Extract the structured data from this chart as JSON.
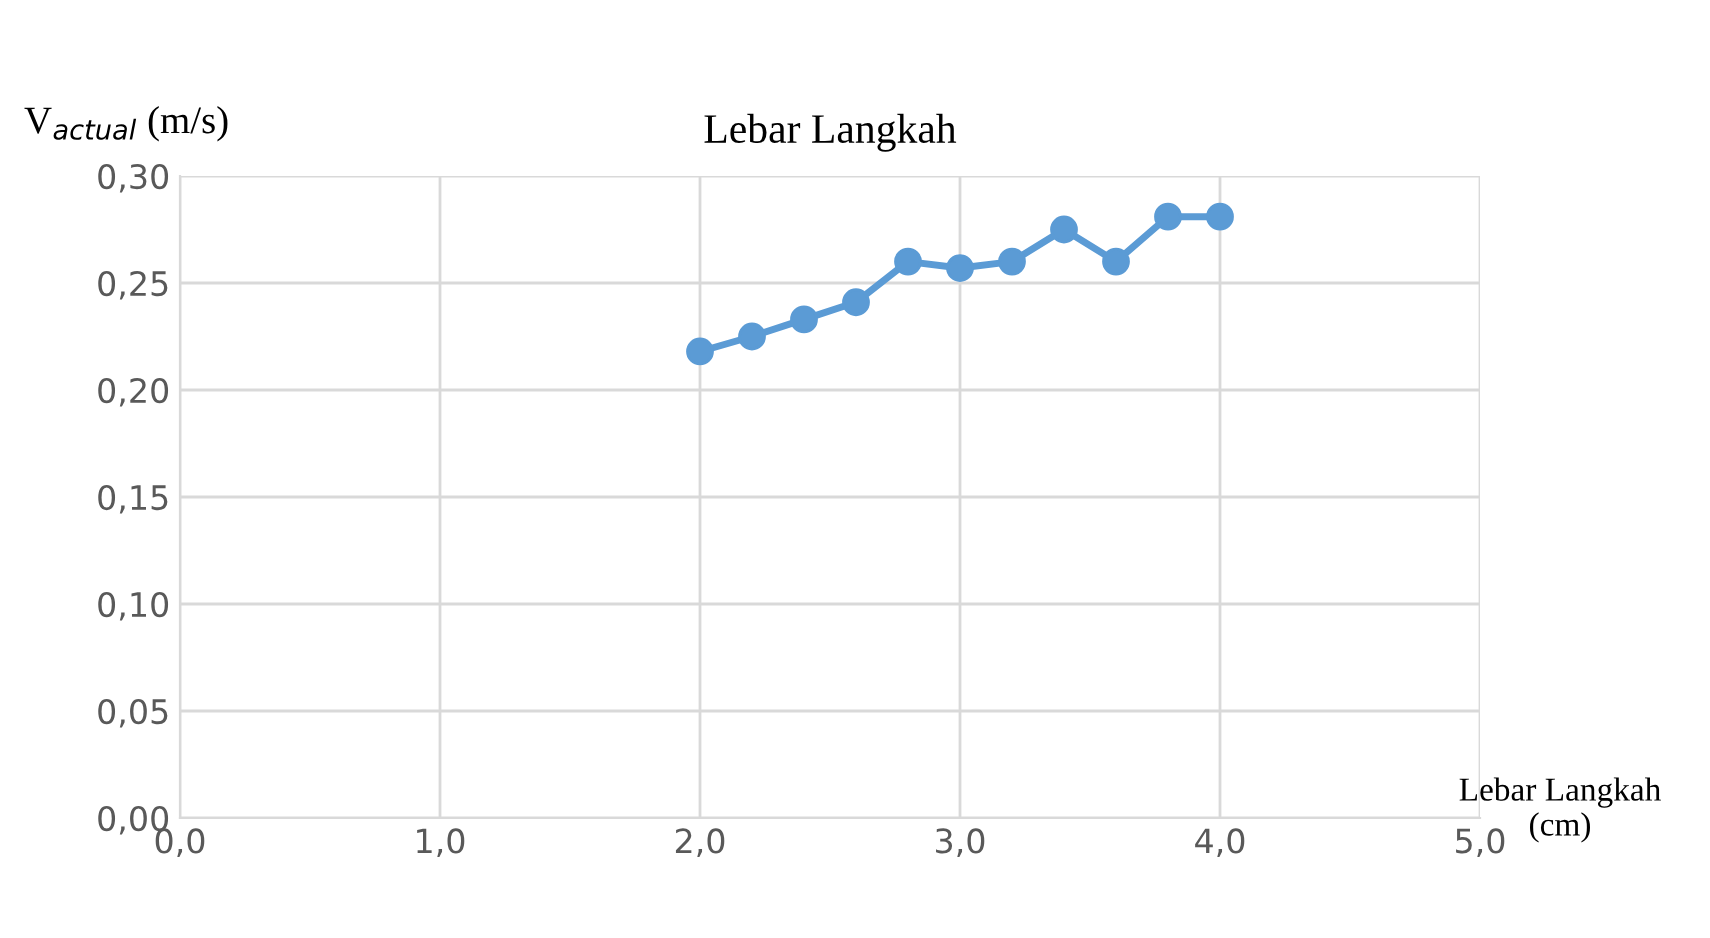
{
  "chart_data": {
    "type": "line",
    "title": "Lebar Langkah",
    "xlabel": "Lebar Langkah\n(cm)",
    "ylabel": "V$_{actual}$ (m/s)",
    "x": [
      2.0,
      2.2,
      2.4,
      2.6,
      2.8,
      3.0,
      3.2,
      3.4,
      3.6,
      3.8,
      4.0
    ],
    "series": [
      {
        "color": "#5b9bd5",
        "values": [
          0.218,
          0.225,
          0.233,
          0.241,
          0.26,
          0.257,
          0.26,
          0.275,
          0.26,
          0.281,
          0.281
        ]
      }
    ],
    "xlim": [
      0,
      5
    ],
    "ylim": [
      0,
      0.3
    ],
    "xticks": [
      {
        "value": 0,
        "label": "0,0"
      },
      {
        "value": 1,
        "label": "1,0"
      },
      {
        "value": 2,
        "label": "2,0"
      },
      {
        "value": 3,
        "label": "3,0"
      },
      {
        "value": 4,
        "label": "4,0"
      },
      {
        "value": 5,
        "label": "5,0"
      }
    ],
    "yticks": [
      {
        "value": 0,
        "label": "0,00"
      },
      {
        "value": 0.05,
        "label": "0,05"
      },
      {
        "value": 0.1,
        "label": "0,10"
      },
      {
        "value": 0.15,
        "label": "0,15"
      },
      {
        "value": 0.2,
        "label": "0,20"
      },
      {
        "value": 0.25,
        "label": "0,25"
      },
      {
        "value": 0.3,
        "label": "0,30"
      }
    ],
    "grid": true,
    "marker": "circle",
    "line_style": "solid",
    "legend": false
  }
}
